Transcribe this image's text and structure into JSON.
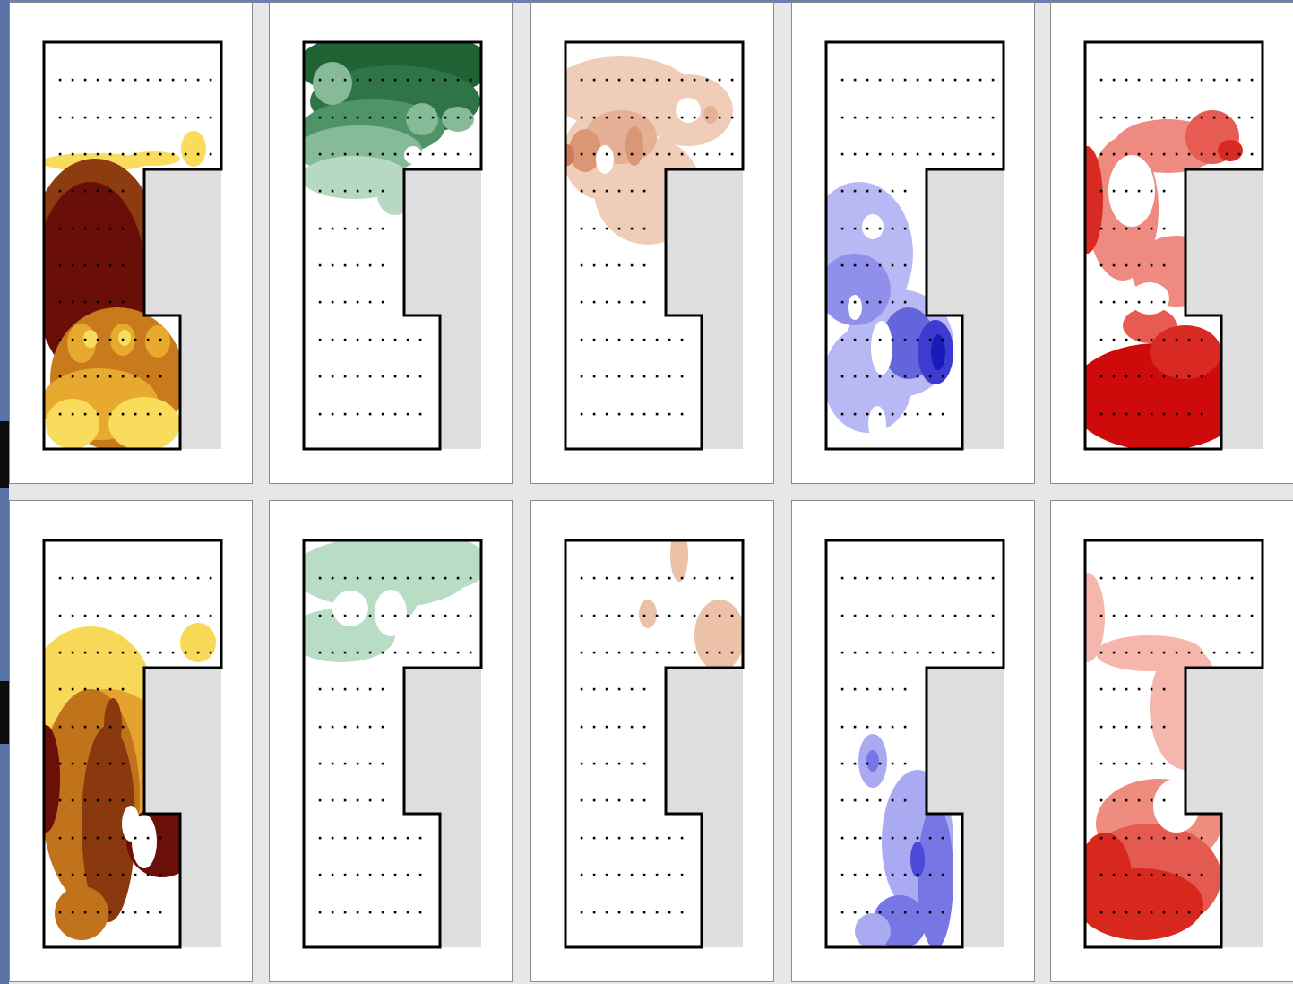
{
  "figure": {
    "rows": 2,
    "columns": 5
  },
  "maps": [
    {
      "row": 1,
      "col": 1,
      "palette": "brown-yellow",
      "colors": [
        "#f9dc5c",
        "#e8aa2e",
        "#c87a1c",
        "#8c3c10",
        "#6a0f07"
      ]
    },
    {
      "row": 1,
      "col": 2,
      "palette": "green",
      "colors": [
        "#b7d9c2",
        "#86ba98",
        "#4f9467",
        "#2f7446",
        "#1f6234"
      ]
    },
    {
      "row": 1,
      "col": 3,
      "palette": "salmon",
      "colors": [
        "#efcdb8",
        "#e6b096",
        "#db9676",
        "#cc7a58"
      ]
    },
    {
      "row": 1,
      "col": 4,
      "palette": "blue-violet",
      "colors": [
        "#b8b8f4",
        "#9090ea",
        "#6464dc",
        "#3c3cd0",
        "#1a1ab8"
      ]
    },
    {
      "row": 1,
      "col": 5,
      "palette": "red",
      "colors": [
        "#f6b4ac",
        "#ef8a80",
        "#e65c52",
        "#d82a22",
        "#cf0a0a"
      ]
    },
    {
      "row": 2,
      "col": 1,
      "palette": "brown-yellow",
      "colors": [
        "#f7d858",
        "#e6a22e",
        "#c0731a",
        "#8a380e",
        "#6a1008"
      ]
    },
    {
      "row": 2,
      "col": 2,
      "palette": "green",
      "colors": [
        "#b8dcc4"
      ]
    },
    {
      "row": 2,
      "col": 3,
      "palette": "salmon",
      "colors": [
        "#ebc1a8"
      ]
    },
    {
      "row": 2,
      "col": 4,
      "palette": "blue-violet",
      "colors": [
        "#aaaaf2",
        "#7676e4",
        "#4a4ad8"
      ]
    },
    {
      "row": 2,
      "col": 5,
      "palette": "red",
      "colors": [
        "#f5b6ae",
        "#ee8c80",
        "#e45a50",
        "#d8281e"
      ]
    }
  ],
  "style": {
    "outline": "#000000",
    "excluded_area": "#dedede",
    "sample_point": "#000000",
    "panel_background": "#ffffff"
  }
}
